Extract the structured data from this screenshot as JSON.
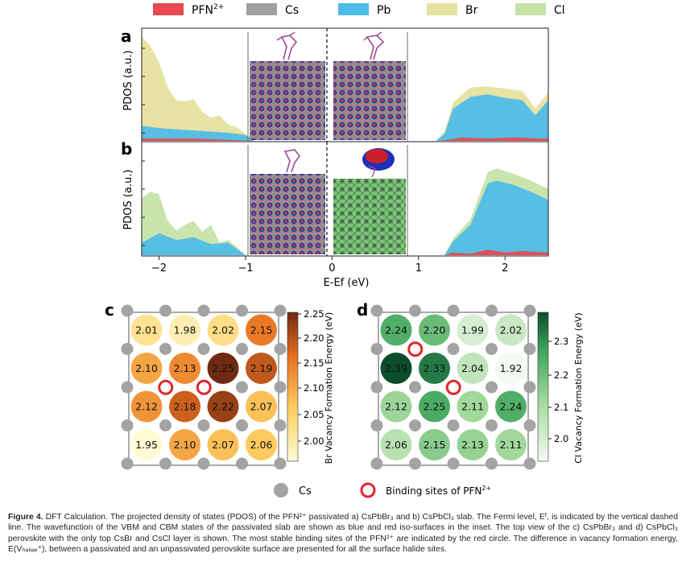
{
  "colors": {
    "pfn": "#e8484f",
    "cs": "#a0a0a0",
    "pb": "#4dbbe8",
    "br": "#e6e2a0",
    "cl": "#c6e3a8",
    "binding_ring": "#e0262c",
    "cs_dot": "#a3a3a3"
  },
  "legend": {
    "items": [
      {
        "key": "pfn",
        "label": "PFN",
        "sup": "2+"
      },
      {
        "key": "cs",
        "label": "Cs",
        "sup": ""
      },
      {
        "key": "pb",
        "label": "Pb",
        "sup": ""
      },
      {
        "key": "br",
        "label": "Br",
        "sup": ""
      },
      {
        "key": "cl",
        "label": "Cl",
        "sup": ""
      }
    ]
  },
  "panels": {
    "a": {
      "letter": "a",
      "ylabel": "PDOS (a.u.)",
      "inset_left": "VBM wavefunction slab (CsPbBr3)",
      "inset_right": "CBM wavefunction slab (CsPbBr3)"
    },
    "b": {
      "letter": "b",
      "ylabel": "PDOS (a.u.)",
      "inset_left": "VBM wavefunction slab (CsPbCl3)",
      "inset_right": "CBM wavefunction slab (CsPbCl3)"
    },
    "c": {
      "letter": "c",
      "colorbar_label": "Br Vacancy Formation Energy (eV)",
      "colorbar_ticks": [
        "2.25",
        "2.20",
        "2.15",
        "2.10",
        "2.05",
        "2.00"
      ]
    },
    "d": {
      "letter": "d",
      "colorbar_label": "Cl Vacancy Formation Energy (eV)",
      "colorbar_ticks": [
        "2.3",
        "2.2",
        "2.1",
        "2.0"
      ]
    }
  },
  "xaxis": {
    "label": "E-Ef (eV)",
    "ticks": [
      "−2",
      "−1",
      "0",
      "1",
      "2"
    ]
  },
  "grid_legend": {
    "cs_label": "Cs",
    "binding_label": "Binding sites of PFN",
    "binding_sup": "2+"
  },
  "caption": {
    "figure_label": "Figure 4.",
    "text": "DFT Calculation. The projected density of states (PDOS) of the PFN²⁺ passivated a) CsPbBr₃ and b) CsPbCl₃ slab. The Fermi level, Eᶠ, is indicated by the vertical dashed line. The wavefunction of the VBM and CBM states of the passivated slab are shown as blue and red iso-surfaces in the inset. The top view of the c) CsPbBr₃ and d) CsPbCl₃ perovskite with the only top CsBr and CsCl layer is shown. The most stable binding sites of the PFN²⁺ are indicated by the red circle. The difference in vacancy formation energy, E(Vₕₐₗᵢₔₑ⁺), between a passivated and an unpassivated perovskite surface are presented for all the surface halide sites."
  },
  "chart_data": [
    {
      "type": "area",
      "panel": "a",
      "xlabel": "E-Ef (eV)",
      "ylabel": "PDOS (a.u.)",
      "xlim": [
        -2.2,
        2.5
      ],
      "grid": false,
      "legend_position": "top",
      "series": [
        {
          "name": "PFN2+",
          "x": [
            -2.2,
            -1.6,
            -1.2,
            -0.9,
            1.2,
            1.35,
            1.5,
            1.8,
            2.1,
            2.4,
            2.5
          ],
          "values": [
            0.2,
            0.2,
            0.1,
            0.0,
            0.0,
            0.1,
            0.3,
            0.2,
            0.3,
            0.2,
            0.2
          ]
        },
        {
          "name": "Pb",
          "x": [
            -2.2,
            -2.0,
            -1.8,
            -1.6,
            -1.4,
            -1.2,
            -1.0,
            -0.9,
            1.2,
            1.3,
            1.4,
            1.6,
            1.8,
            2.0,
            2.2,
            2.35,
            2.5
          ],
          "values": [
            1.3,
            1.1,
            1.0,
            0.9,
            0.8,
            0.7,
            0.5,
            0.0,
            0.0,
            0.6,
            2.8,
            3.8,
            4.0,
            3.7,
            3.5,
            2.2,
            3.5
          ]
        },
        {
          "name": "Br",
          "x": [
            -2.2,
            -2.1,
            -2.0,
            -1.9,
            -1.8,
            -1.7,
            -1.6,
            -1.5,
            -1.4,
            -1.3,
            -1.2,
            -1.1,
            -1.0,
            -0.9,
            1.2,
            1.3,
            1.4,
            1.6,
            1.8,
            2.0,
            2.2,
            2.35,
            2.5
          ],
          "values": [
            9.0,
            8.2,
            6.8,
            4.6,
            3.5,
            3.4,
            3.6,
            2.5,
            2.0,
            2.2,
            1.4,
            1.2,
            0.6,
            0.0,
            0.0,
            0.8,
            3.3,
            4.6,
            4.7,
            4.5,
            4.3,
            2.8,
            4.2
          ]
        },
        {
          "name": "Cs",
          "x": [
            -2.2,
            -0.9,
            1.2,
            2.5
          ],
          "values": [
            0.1,
            0.1,
            0.1,
            0.1
          ]
        }
      ]
    },
    {
      "type": "area",
      "panel": "b",
      "xlabel": "E-Ef (eV)",
      "ylabel": "PDOS (a.u.)",
      "xlim": [
        -2.2,
        2.5
      ],
      "grid": false,
      "series": [
        {
          "name": "PFN2+",
          "x": [
            -2.2,
            -1.0,
            1.3,
            1.4,
            1.6,
            1.8,
            2.0,
            2.2,
            2.5
          ],
          "values": [
            0.1,
            0.0,
            0.0,
            0.2,
            0.1,
            0.4,
            0.2,
            0.3,
            0.2
          ]
        },
        {
          "name": "Pb",
          "x": [
            -2.2,
            -2.0,
            -1.8,
            -1.6,
            -1.4,
            -1.2,
            -1.0,
            1.3,
            1.4,
            1.6,
            1.8,
            1.9,
            2.1,
            2.3,
            2.5
          ],
          "values": [
            0.9,
            1.6,
            1.1,
            1.3,
            0.8,
            0.9,
            0.0,
            0.0,
            1.0,
            2.2,
            5.2,
            5.4,
            5.1,
            4.6,
            4.0
          ]
        },
        {
          "name": "Cl",
          "x": [
            -2.2,
            -2.1,
            -2.0,
            -1.9,
            -1.8,
            -1.7,
            -1.6,
            -1.5,
            -1.4,
            -1.3,
            -1.2,
            -1.1,
            -1.0,
            1.3,
            1.4,
            1.6,
            1.8,
            1.9,
            2.1,
            2.3,
            2.5
          ],
          "values": [
            4.1,
            4.6,
            4.4,
            2.5,
            1.8,
            2.2,
            2.5,
            1.7,
            2.2,
            0.9,
            1.1,
            0.6,
            0.0,
            0.0,
            1.2,
            2.6,
            6.0,
            6.3,
            5.9,
            5.4,
            4.8
          ]
        },
        {
          "name": "Cs",
          "x": [
            -2.2,
            -1.0,
            1.3,
            2.5
          ],
          "values": [
            0.1,
            0.1,
            0.1,
            0.1
          ]
        }
      ]
    },
    {
      "type": "heatmap",
      "panel": "c",
      "colorbar_label": "Br Vacancy Formation Energy (eV)",
      "value_range": [
        1.95,
        2.25
      ],
      "rows": [
        [
          2.01,
          1.98,
          2.02,
          2.15
        ],
        [
          2.1,
          2.13,
          2.25,
          2.19
        ],
        [
          2.12,
          2.18,
          2.22,
          2.07
        ],
        [
          1.95,
          2.1,
          2.07,
          2.06
        ]
      ],
      "binding_sites": [
        {
          "row": 1.5,
          "col": 0.5
        },
        {
          "row": 1.5,
          "col": 1.5
        }
      ]
    },
    {
      "type": "heatmap",
      "panel": "d",
      "colorbar_label": "Cl Vacancy Formation Energy (eV)",
      "value_range": [
        1.92,
        2.39
      ],
      "rows": [
        [
          2.24,
          2.2,
          1.99,
          2.02
        ],
        [
          2.39,
          2.33,
          2.04,
          1.92
        ],
        [
          2.12,
          2.25,
          2.11,
          2.24
        ],
        [
          2.06,
          2.15,
          2.13,
          2.11
        ]
      ],
      "binding_sites": [
        {
          "row": 0.5,
          "col": 0.5
        },
        {
          "row": 1.5,
          "col": 1.5
        }
      ]
    }
  ]
}
